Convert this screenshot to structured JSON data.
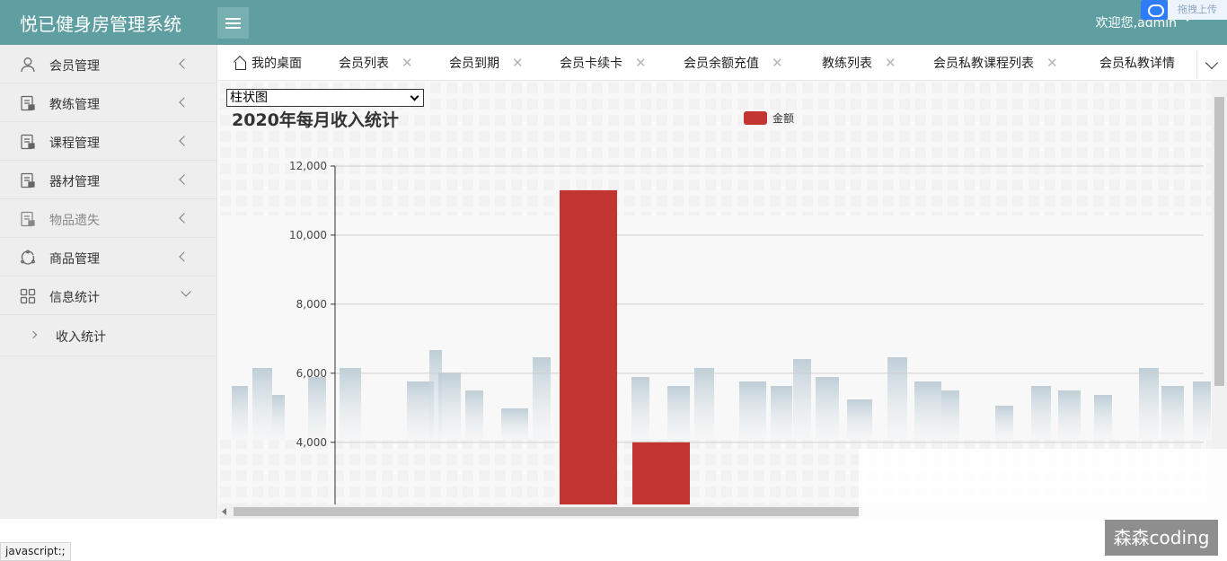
{
  "header": {
    "title": "悦已健身房管理系统",
    "welcome": "欢迎您,admin",
    "upload_label": "拖拽上传"
  },
  "sidebar": {
    "items": [
      {
        "label": "会员管理",
        "icon": "user-icon"
      },
      {
        "label": "教练管理",
        "icon": "document-icon"
      },
      {
        "label": "课程管理",
        "icon": "document-icon"
      },
      {
        "label": "器材管理",
        "icon": "document-icon"
      },
      {
        "label": "物品遗失",
        "icon": "document-icon"
      },
      {
        "label": "商品管理",
        "icon": "refresh-icon"
      },
      {
        "label": "信息统计",
        "icon": "grid-icon"
      }
    ],
    "sub_items": [
      {
        "label": "收入统计"
      }
    ]
  },
  "tabs": [
    {
      "label": "我的桌面"
    },
    {
      "label": "会员列表"
    },
    {
      "label": "会员到期"
    },
    {
      "label": "会员卡续卡"
    },
    {
      "label": "会员余额充值"
    },
    {
      "label": "教练列表"
    },
    {
      "label": "会员私教课程列表"
    },
    {
      "label": "会员私教详情"
    }
  ],
  "chart_select": {
    "value": "柱状图"
  },
  "chart_data": {
    "type": "bar",
    "title": "2020年每月收入统计",
    "series": [
      {
        "name": "金额",
        "values": [
          11300,
          4000
        ]
      }
    ],
    "y_tick_labels": [
      "12,000",
      "10,000",
      "8,000",
      "6,000",
      "4,000"
    ],
    "ylim": [
      2200,
      12000
    ],
    "legend_position": "top-center",
    "bar_color": "#c23531",
    "grid": true
  },
  "status_text": "javascript:;",
  "watermark_text": "森森coding",
  "colors": {
    "header_bg": "#5f9fa2",
    "sidebar_bg": "#eeeeee",
    "bar": "#c23531"
  }
}
